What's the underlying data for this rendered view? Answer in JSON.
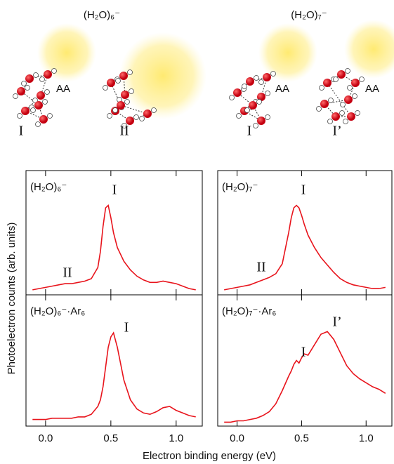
{
  "structures": {
    "clusters": [
      {
        "formula": "(H₂O)₆⁻",
        "isomers": [
          {
            "label": "I",
            "site": "AA"
          },
          {
            "label": "II"
          }
        ]
      },
      {
        "formula": "(H₂O)₇⁻",
        "isomers": [
          {
            "label": "I",
            "site": "AA"
          },
          {
            "label": "I’",
            "site": "AA"
          }
        ]
      }
    ]
  },
  "figure": {
    "ylabel": "Photoelectron counts (arb. units)",
    "xlabel": "Electron binding energy (eV)"
  },
  "chart_data": [
    {
      "type": "line",
      "title": "(H₂O)₆⁻",
      "color": "#e8141c",
      "xlim": [
        -0.15,
        1.2
      ],
      "ylim": [
        0,
        1
      ],
      "xticks": [
        {
          "value": 0,
          "label": "0.0"
        },
        {
          "value": 0.5,
          "label": "0.5"
        },
        {
          "value": 1,
          "label": "1.0"
        }
      ],
      "annotations": [
        "I",
        "II"
      ],
      "x": [
        -0.1,
        -0.05,
        0,
        0.05,
        0.1,
        0.15,
        0.2,
        0.25,
        0.3,
        0.35,
        0.4,
        0.42,
        0.44,
        0.46,
        0.48,
        0.5,
        0.52,
        0.55,
        0.6,
        0.65,
        0.7,
        0.75,
        0.8,
        0.85,
        0.9,
        0.95,
        1.0,
        1.05,
        1.1,
        1.15
      ],
      "values": [
        0.04,
        0.05,
        0.06,
        0.07,
        0.08,
        0.09,
        0.09,
        0.1,
        0.11,
        0.13,
        0.22,
        0.35,
        0.55,
        0.7,
        0.72,
        0.62,
        0.5,
        0.38,
        0.27,
        0.2,
        0.15,
        0.12,
        0.1,
        0.1,
        0.11,
        0.1,
        0.09,
        0.07,
        0.05,
        0.04
      ]
    },
    {
      "type": "line",
      "title": "(H₂O)₇⁻",
      "color": "#e8141c",
      "xlim": [
        -0.15,
        1.2
      ],
      "ylim": [
        0,
        1
      ],
      "xticks": [
        {
          "value": 0,
          "label": "0.0"
        },
        {
          "value": 0.5,
          "label": "0.5"
        },
        {
          "value": 1,
          "label": "1.0"
        }
      ],
      "annotations": [
        "I",
        "II"
      ],
      "x": [
        -0.1,
        -0.05,
        0,
        0.05,
        0.1,
        0.15,
        0.2,
        0.25,
        0.3,
        0.35,
        0.4,
        0.42,
        0.44,
        0.46,
        0.48,
        0.5,
        0.52,
        0.55,
        0.6,
        0.65,
        0.7,
        0.75,
        0.8,
        0.85,
        0.9,
        0.95,
        1.0,
        1.05,
        1.1,
        1.15
      ],
      "values": [
        0.04,
        0.05,
        0.06,
        0.07,
        0.08,
        0.1,
        0.12,
        0.14,
        0.17,
        0.25,
        0.5,
        0.62,
        0.7,
        0.72,
        0.7,
        0.64,
        0.57,
        0.48,
        0.38,
        0.3,
        0.24,
        0.18,
        0.13,
        0.1,
        0.08,
        0.07,
        0.06,
        0.05,
        0.05,
        0.06
      ]
    },
    {
      "type": "line",
      "title": "(H₂O)₆⁻·Ar₆",
      "color": "#e8141c",
      "xlim": [
        -0.15,
        1.2
      ],
      "ylim": [
        0,
        1
      ],
      "xticks": [
        {
          "value": 0,
          "label": "0.0"
        },
        {
          "value": 0.5,
          "label": "0.5"
        },
        {
          "value": 1,
          "label": "1.0"
        }
      ],
      "annotations": [
        "I"
      ],
      "x": [
        -0.1,
        -0.05,
        0,
        0.05,
        0.1,
        0.15,
        0.2,
        0.25,
        0.3,
        0.35,
        0.4,
        0.42,
        0.44,
        0.46,
        0.48,
        0.5,
        0.52,
        0.55,
        0.6,
        0.65,
        0.7,
        0.75,
        0.8,
        0.85,
        0.9,
        0.95,
        1.0,
        1.05,
        1.1,
        1.15
      ],
      "values": [
        0.05,
        0.05,
        0.05,
        0.06,
        0.06,
        0.06,
        0.06,
        0.07,
        0.07,
        0.09,
        0.15,
        0.2,
        0.3,
        0.45,
        0.6,
        0.68,
        0.71,
        0.6,
        0.35,
        0.2,
        0.13,
        0.1,
        0.09,
        0.11,
        0.14,
        0.15,
        0.12,
        0.1,
        0.08,
        0.07
      ]
    },
    {
      "type": "line",
      "title": "(H₂O)₇⁻·Ar₆",
      "color": "#e8141c",
      "xlim": [
        -0.15,
        1.2
      ],
      "ylim": [
        0,
        1
      ],
      "xticks": [
        {
          "value": 0,
          "label": "0.0"
        },
        {
          "value": 0.5,
          "label": "0.5"
        },
        {
          "value": 1,
          "label": "1.0"
        }
      ],
      "annotations": [
        "I",
        "I’"
      ],
      "x": [
        -0.1,
        -0.05,
        0,
        0.05,
        0.1,
        0.15,
        0.2,
        0.25,
        0.3,
        0.35,
        0.4,
        0.42,
        0.44,
        0.46,
        0.48,
        0.5,
        0.52,
        0.55,
        0.6,
        0.65,
        0.7,
        0.75,
        0.8,
        0.85,
        0.9,
        0.95,
        1.0,
        1.05,
        1.1,
        1.15
      ],
      "values": [
        0.03,
        0.03,
        0.04,
        0.04,
        0.05,
        0.06,
        0.08,
        0.11,
        0.17,
        0.27,
        0.38,
        0.42,
        0.47,
        0.5,
        0.48,
        0.52,
        0.55,
        0.54,
        0.62,
        0.7,
        0.72,
        0.66,
        0.56,
        0.46,
        0.4,
        0.36,
        0.33,
        0.3,
        0.28,
        0.25
      ]
    }
  ]
}
